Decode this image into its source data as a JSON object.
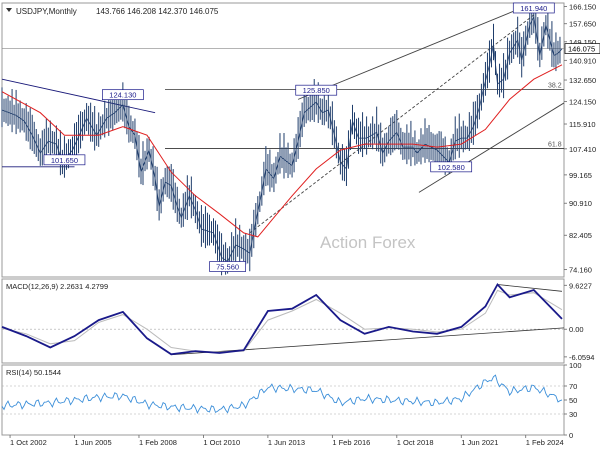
{
  "header": {
    "symbol_timeframe": "USDJPY,Monthly",
    "ohlc": "143.766 146.208 142.370 146.075"
  },
  "watermark": "Action Forex",
  "colors": {
    "bars": "#1f3d6b",
    "ma": "#e02020",
    "macd": "#1a1a8a",
    "signal": "#bbbbbb",
    "rsi": "#3c8fd9",
    "trend": "#1a1a7a",
    "channel": "#444444",
    "fib": "#333333",
    "current": "#888888"
  },
  "current_price": {
    "label": "146.075",
    "value": 146.075
  },
  "x_axis": {
    "ticks": [
      {
        "label": "1 Oct 2002",
        "date": "2002-10"
      },
      {
        "label": "1 Jun 2005",
        "date": "2005-06"
      },
      {
        "label": "1 Feb 2008",
        "date": "2008-02"
      },
      {
        "label": "1 Oct 2010",
        "date": "2010-10"
      },
      {
        "label": "1 Jun 2013",
        "date": "2013-06"
      },
      {
        "label": "1 Feb 2016",
        "date": "2016-02"
      },
      {
        "label": "1 Oct 2018",
        "date": "2018-10"
      },
      {
        "label": "1 Jun 2021",
        "date": "2021-06"
      },
      {
        "label": "1 Feb 2024",
        "date": "2024-02"
      }
    ]
  },
  "chart_data": [
    {
      "type": "line",
      "title": "USDJPY,Monthly",
      "y_scale": "log",
      "ylim": [
        72.5,
        168
      ],
      "y_ticks": [
        "166.150",
        "157.650",
        "149.150",
        "140.910",
        "132.650",
        "124.150",
        "115.910",
        "107.410",
        "99.165",
        "90.910",
        "82.405",
        "74.160"
      ],
      "xlim": [
        "2002-06",
        "2025-09"
      ],
      "series": [
        {
          "name": "",
          "points": [
            {
              "x": "2002-06",
              "y": 121
            },
            {
              "x": "2003-01",
              "y": 119
            },
            {
              "x": "2003-05",
              "y": 117
            },
            {
              "x": "2003-09",
              "y": 112
            },
            {
              "x": "2004-01",
              "y": 106
            },
            {
              "x": "2004-05",
              "y": 110
            },
            {
              "x": "2004-09",
              "y": 109
            },
            {
              "x": "2004-12",
              "y": 103
            },
            {
              "x": "2005-05",
              "y": 107
            },
            {
              "x": "2005-09",
              "y": 113
            },
            {
              "x": "2005-12",
              "y": 118
            },
            {
              "x": "2006-05",
              "y": 112
            },
            {
              "x": "2006-10",
              "y": 118
            },
            {
              "x": "2007-02",
              "y": 120
            },
            {
              "x": "2007-06",
              "y": 123
            },
            {
              "x": "2007-09",
              "y": 115
            },
            {
              "x": "2007-12",
              "y": 112
            },
            {
              "x": "2008-03",
              "y": 100
            },
            {
              "x": "2008-07",
              "y": 107
            },
            {
              "x": "2008-10",
              "y": 98
            },
            {
              "x": "2008-12",
              "y": 90
            },
            {
              "x": "2009-03",
              "y": 97
            },
            {
              "x": "2009-06",
              "y": 96
            },
            {
              "x": "2009-09",
              "y": 90
            },
            {
              "x": "2009-11",
              "y": 87
            },
            {
              "x": "2010-03",
              "y": 93
            },
            {
              "x": "2010-06",
              "y": 89
            },
            {
              "x": "2010-09",
              "y": 84
            },
            {
              "x": "2011-03",
              "y": 83
            },
            {
              "x": "2011-07",
              "y": 77
            },
            {
              "x": "2011-10",
              "y": 76
            },
            {
              "x": "2012-02",
              "y": 80
            },
            {
              "x": "2012-06",
              "y": 79
            },
            {
              "x": "2012-09",
              "y": 78
            },
            {
              "x": "2012-12",
              "y": 86
            },
            {
              "x": "2013-03",
              "y": 94
            },
            {
              "x": "2013-05",
              "y": 101
            },
            {
              "x": "2013-09",
              "y": 98
            },
            {
              "x": "2013-12",
              "y": 105
            },
            {
              "x": "2014-06",
              "y": 102
            },
            {
              "x": "2014-09",
              "y": 110
            },
            {
              "x": "2014-12",
              "y": 120
            },
            {
              "x": "2015-06",
              "y": 124
            },
            {
              "x": "2015-09",
              "y": 120
            },
            {
              "x": "2015-12",
              "y": 121
            },
            {
              "x": "2016-03",
              "y": 112
            },
            {
              "x": "2016-06",
              "y": 103
            },
            {
              "x": "2016-09",
              "y": 101
            },
            {
              "x": "2016-12",
              "y": 117
            },
            {
              "x": "2017-03",
              "y": 111
            },
            {
              "x": "2017-07",
              "y": 111
            },
            {
              "x": "2017-12",
              "y": 113
            },
            {
              "x": "2018-03",
              "y": 106
            },
            {
              "x": "2018-06",
              "y": 110
            },
            {
              "x": "2018-10",
              "y": 113
            },
            {
              "x": "2019-01",
              "y": 108
            },
            {
              "x": "2019-06",
              "y": 108
            },
            {
              "x": "2019-08",
              "y": 106
            },
            {
              "x": "2019-12",
              "y": 109
            },
            {
              "x": "2020-03",
              "y": 108
            },
            {
              "x": "2020-06",
              "y": 107
            },
            {
              "x": "2020-09",
              "y": 105
            },
            {
              "x": "2020-12",
              "y": 103
            },
            {
              "x": "2021-03",
              "y": 110
            },
            {
              "x": "2021-06",
              "y": 111
            },
            {
              "x": "2021-09",
              "y": 111
            },
            {
              "x": "2021-12",
              "y": 115
            },
            {
              "x": "2022-03",
              "y": 122
            },
            {
              "x": "2022-05",
              "y": 129
            },
            {
              "x": "2022-08",
              "y": 139
            },
            {
              "x": "2022-10",
              "y": 148
            },
            {
              "x": "2022-12",
              "y": 131
            },
            {
              "x": "2023-03",
              "y": 133
            },
            {
              "x": "2023-06",
              "y": 144
            },
            {
              "x": "2023-10",
              "y": 150
            },
            {
              "x": "2023-12",
              "y": 141
            },
            {
              "x": "2024-04",
              "y": 157
            },
            {
              "x": "2024-06",
              "y": 161
            },
            {
              "x": "2024-09",
              "y": 143
            },
            {
              "x": "2024-12",
              "y": 157
            },
            {
              "x": "2025-02",
              "y": 150
            },
            {
              "x": "2025-04",
              "y": 143
            },
            {
              "x": "2025-06",
              "y": 144
            },
            {
              "x": "2025-08",
              "y": 146
            }
          ]
        },
        {
          "name": "",
          "points": [
            {
              "x": "2002-06",
              "y": 128
            },
            {
              "x": "2004-01",
              "y": 120
            },
            {
              "x": "2005-01",
              "y": 112
            },
            {
              "x": "2006-06",
              "y": 112
            },
            {
              "x": "2007-06",
              "y": 115
            },
            {
              "x": "2008-06",
              "y": 112
            },
            {
              "x": "2009-06",
              "y": 100
            },
            {
              "x": "2010-06",
              "y": 93
            },
            {
              "x": "2011-06",
              "y": 88
            },
            {
              "x": "2012-06",
              "y": 83
            },
            {
              "x": "2013-01",
              "y": 82
            },
            {
              "x": "2013-09",
              "y": 87
            },
            {
              "x": "2014-06",
              "y": 93
            },
            {
              "x": "2015-06",
              "y": 101
            },
            {
              "x": "2016-06",
              "y": 107
            },
            {
              "x": "2017-06",
              "y": 109
            },
            {
              "x": "2018-06",
              "y": 109
            },
            {
              "x": "2019-06",
              "y": 109
            },
            {
              "x": "2020-06",
              "y": 108
            },
            {
              "x": "2021-06",
              "y": 109
            },
            {
              "x": "2022-06",
              "y": 114
            },
            {
              "x": "2023-06",
              "y": 125
            },
            {
              "x": "2024-06",
              "y": 133
            },
            {
              "x": "2025-08",
              "y": 139
            }
          ]
        }
      ],
      "annotations": [
        {
          "label": "161.940",
          "x": "2024-06",
          "y": 161.94
        },
        {
          "label": "125.850",
          "x": "2015-06",
          "y": 125.85
        },
        {
          "label": "124.130",
          "x": "2007-06",
          "y": 124.13
        },
        {
          "label": "101.650",
          "x": "2005-01",
          "y": 101.65
        },
        {
          "label": "102.580",
          "x": "2021-01",
          "y": 102.58
        },
        {
          "label": "75.560",
          "x": "2011-10",
          "y": 75.56
        }
      ],
      "levels": [
        {
          "label": "38.2",
          "y": 128.8
        },
        {
          "label": "61.8",
          "y": 107.5
        }
      ],
      "trendlines": [
        {
          "from": {
            "x": "2002-06",
            "y": 133
          },
          "to": {
            "x": "2008-10",
            "y": 120
          }
        },
        {
          "from": {
            "x": "2002-06",
            "y": 101.65
          },
          "to": {
            "x": "2005-06",
            "y": 101.65
          }
        },
        {
          "from": {
            "x": "2014-09",
            "y": 125
          },
          "to": {
            "x": "2024-06",
            "y": 168
          }
        },
        {
          "from": {
            "x": "2019-09",
            "y": 94
          },
          "to": {
            "x": "2027-10",
            "y": 136
          }
        },
        {
          "from": {
            "x": "2012-09",
            "y": 83
          },
          "to": {
            "x": "2024-06",
            "y": 161.94
          }
        }
      ]
    },
    {
      "type": "line",
      "title": "MACD(12,26,9) 2.2631 4.2799",
      "ylim": [
        -7.4,
        11.0
      ],
      "y_ticks": [
        "9.6227",
        "0.00",
        "-6.0594"
      ],
      "series": [
        {
          "name": "",
          "points": [
            {
              "x": "2002-06",
              "y": 0.5
            },
            {
              "x": "2003-06",
              "y": -1.5
            },
            {
              "x": "2004-06",
              "y": -4
            },
            {
              "x": "2005-06",
              "y": -1.5
            },
            {
              "x": "2006-06",
              "y": 2
            },
            {
              "x": "2007-06",
              "y": 3.8
            },
            {
              "x": "2008-06",
              "y": -2
            },
            {
              "x": "2009-06",
              "y": -5.5
            },
            {
              "x": "2010-06",
              "y": -4.8
            },
            {
              "x": "2011-06",
              "y": -5.2
            },
            {
              "x": "2012-06",
              "y": -4.6
            },
            {
              "x": "2013-06",
              "y": 4
            },
            {
              "x": "2014-06",
              "y": 4.5
            },
            {
              "x": "2015-06",
              "y": 7.5
            },
            {
              "x": "2016-06",
              "y": 2
            },
            {
              "x": "2017-06",
              "y": -1
            },
            {
              "x": "2018-06",
              "y": 0.5
            },
            {
              "x": "2019-06",
              "y": -0.5
            },
            {
              "x": "2020-06",
              "y": -1
            },
            {
              "x": "2021-06",
              "y": 0.5
            },
            {
              "x": "2022-06",
              "y": 5
            },
            {
              "x": "2022-12",
              "y": 9.8
            },
            {
              "x": "2023-06",
              "y": 7
            },
            {
              "x": "2024-06",
              "y": 8.6
            },
            {
              "x": "2025-08",
              "y": 2.2631
            }
          ]
        },
        {
          "name": "",
          "points": [
            {
              "x": "2002-06",
              "y": 0.2
            },
            {
              "x": "2003-06",
              "y": -1
            },
            {
              "x": "2004-06",
              "y": -3.2
            },
            {
              "x": "2005-06",
              "y": -2.5
            },
            {
              "x": "2006-06",
              "y": 1.5
            },
            {
              "x": "2007-06",
              "y": 3.2
            },
            {
              "x": "2008-06",
              "y": 0
            },
            {
              "x": "2009-06",
              "y": -4
            },
            {
              "x": "2010-06",
              "y": -4.8
            },
            {
              "x": "2011-06",
              "y": -5
            },
            {
              "x": "2012-06",
              "y": -4.8
            },
            {
              "x": "2013-06",
              "y": 2
            },
            {
              "x": "2014-06",
              "y": 4
            },
            {
              "x": "2015-06",
              "y": 6.5
            },
            {
              "x": "2016-06",
              "y": 3.5
            },
            {
              "x": "2017-06",
              "y": 0
            },
            {
              "x": "2018-06",
              "y": 0.3
            },
            {
              "x": "2019-06",
              "y": 0
            },
            {
              "x": "2020-06",
              "y": -0.6
            },
            {
              "x": "2021-06",
              "y": 0
            },
            {
              "x": "2022-06",
              "y": 3.5
            },
            {
              "x": "2022-12",
              "y": 8.5
            },
            {
              "x": "2023-06",
              "y": 7.5
            },
            {
              "x": "2024-06",
              "y": 8
            },
            {
              "x": "2025-08",
              "y": 4.2799
            }
          ]
        }
      ],
      "trendlines": [
        {
          "from": {
            "x": "2009-06",
            "y": -5.6
          },
          "to": {
            "x": "2025-09",
            "y": 0.3
          }
        },
        {
          "from": {
            "x": "2022-12",
            "y": 9.8
          },
          "to": {
            "x": "2025-08",
            "y": 8.3
          }
        }
      ]
    },
    {
      "type": "line",
      "title": "RSI(14) 50.1544",
      "ylim": [
        0,
        100
      ],
      "y_ticks": [
        "100",
        "70",
        "50",
        "30",
        "0"
      ],
      "series": [
        {
          "name": "",
          "points": [
            {
              "x": "2002-06",
              "y": 42
            },
            {
              "x": "2003-06",
              "y": 44
            },
            {
              "x": "2004-06",
              "y": 46
            },
            {
              "x": "2005-06",
              "y": 50
            },
            {
              "x": "2006-06",
              "y": 54
            },
            {
              "x": "2007-06",
              "y": 56
            },
            {
              "x": "2008-06",
              "y": 44
            },
            {
              "x": "2009-06",
              "y": 40
            },
            {
              "x": "2010-06",
              "y": 38
            },
            {
              "x": "2011-06",
              "y": 36
            },
            {
              "x": "2012-06",
              "y": 42
            },
            {
              "x": "2013-06",
              "y": 68
            },
            {
              "x": "2014-06",
              "y": 66
            },
            {
              "x": "2015-06",
              "y": 64
            },
            {
              "x": "2016-06",
              "y": 46
            },
            {
              "x": "2017-06",
              "y": 52
            },
            {
              "x": "2018-06",
              "y": 50
            },
            {
              "x": "2019-06",
              "y": 48
            },
            {
              "x": "2020-06",
              "y": 46
            },
            {
              "x": "2021-06",
              "y": 52
            },
            {
              "x": "2022-06",
              "y": 76
            },
            {
              "x": "2022-10",
              "y": 82
            },
            {
              "x": "2023-06",
              "y": 62
            },
            {
              "x": "2024-06",
              "y": 68
            },
            {
              "x": "2025-08",
              "y": 50.1544
            }
          ]
        }
      ]
    }
  ]
}
